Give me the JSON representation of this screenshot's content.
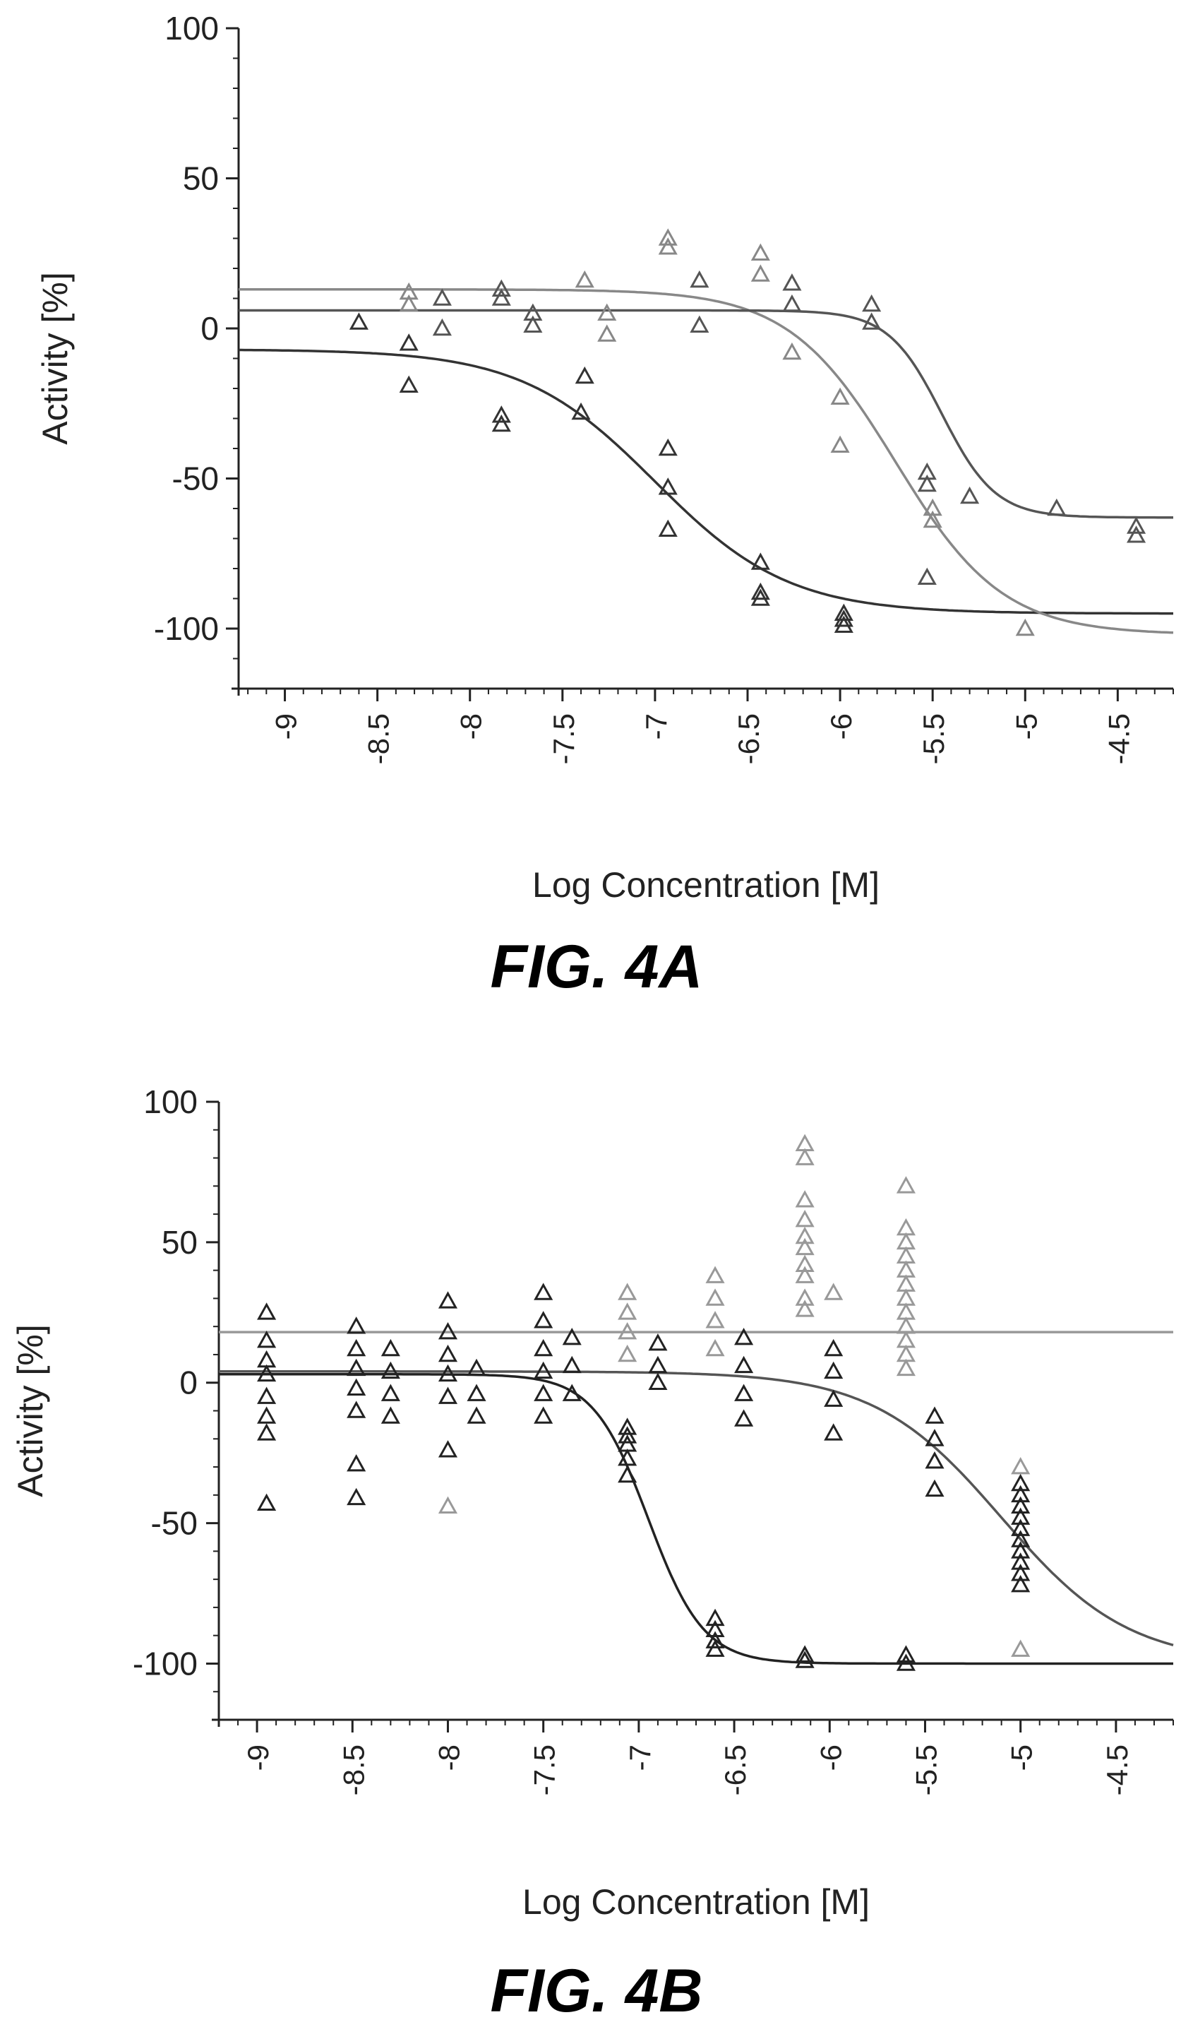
{
  "figures": [
    {
      "label": "FIG. 4A"
    },
    {
      "label": "FIG. 4B"
    }
  ],
  "chart_data": [
    {
      "type": "scatter",
      "title": "",
      "xlabel": "Log Concentration [M]",
      "ylabel": "Activity [%]",
      "xlim": [
        -9.25,
        -4.2
      ],
      "ylim": [
        -120,
        100
      ],
      "xticks": [
        -9,
        -8.5,
        -8,
        -7.5,
        -7,
        -6.5,
        -6,
        -5.5,
        -5,
        -4.5
      ],
      "xtick_labels": [
        "-9",
        "-8.5",
        "-8",
        "-7.5",
        "-7",
        "-6.5",
        "-6",
        "-5.5",
        "-5",
        "-4.5"
      ],
      "yticks": [
        100,
        50,
        0,
        -50,
        -100
      ],
      "ytick_labels": [
        "100",
        "50",
        "0",
        "-50",
        "-100"
      ],
      "marker": "triangle",
      "grid": false,
      "series": [
        {
          "color": "#333333",
          "curve": {
            "model": "4PL",
            "top": -7,
            "bottom": -95,
            "logEC50": -7.0,
            "hill": 1.2
          },
          "points": [
            {
              "x": -8.6,
              "y": 2
            },
            {
              "x": -8.33,
              "y": -5
            },
            {
              "x": -8.33,
              "y": -19
            },
            {
              "x": -7.83,
              "y": -29
            },
            {
              "x": -7.83,
              "y": -32
            },
            {
              "x": -7.4,
              "y": -28
            },
            {
              "x": -7.38,
              "y": -16
            },
            {
              "x": -6.93,
              "y": -40
            },
            {
              "x": -6.93,
              "y": -53
            },
            {
              "x": -6.93,
              "y": -67
            },
            {
              "x": -6.43,
              "y": -78
            },
            {
              "x": -6.43,
              "y": -88
            },
            {
              "x": -6.43,
              "y": -90
            },
            {
              "x": -5.98,
              "y": -95
            },
            {
              "x": -5.98,
              "y": -97
            },
            {
              "x": -5.98,
              "y": -99
            }
          ]
        },
        {
          "color": "#888888",
          "curve": {
            "model": "4PL",
            "top": 13,
            "bottom": -102,
            "logEC50": -5.7,
            "hill": 1.5
          },
          "points": [
            {
              "x": -8.33,
              "y": 12
            },
            {
              "x": -8.33,
              "y": 8
            },
            {
              "x": -7.38,
              "y": 16
            },
            {
              "x": -7.26,
              "y": 5
            },
            {
              "x": -7.26,
              "y": -2
            },
            {
              "x": -6.93,
              "y": 30
            },
            {
              "x": -6.93,
              "y": 27
            },
            {
              "x": -6.43,
              "y": 25
            },
            {
              "x": -6.43,
              "y": 18
            },
            {
              "x": -6.26,
              "y": -8
            },
            {
              "x": -6.0,
              "y": -23
            },
            {
              "x": -6.0,
              "y": -39
            },
            {
              "x": -5.5,
              "y": -60
            },
            {
              "x": -5.5,
              "y": -64
            },
            {
              "x": -5.0,
              "y": -100
            }
          ]
        },
        {
          "color": "#555555",
          "curve": {
            "model": "4PL",
            "top": 6,
            "bottom": -63,
            "logEC50": -5.45,
            "hill": 3.0
          },
          "points": [
            {
              "x": -8.15,
              "y": 0
            },
            {
              "x": -8.15,
              "y": 10
            },
            {
              "x": -7.83,
              "y": 13
            },
            {
              "x": -7.83,
              "y": 10
            },
            {
              "x": -7.66,
              "y": 5
            },
            {
              "x": -7.66,
              "y": 1
            },
            {
              "x": -6.76,
              "y": 16
            },
            {
              "x": -6.76,
              "y": 1
            },
            {
              "x": -6.26,
              "y": 15
            },
            {
              "x": -6.26,
              "y": 8
            },
            {
              "x": -5.83,
              "y": 8
            },
            {
              "x": -5.83,
              "y": 2
            },
            {
              "x": -5.53,
              "y": -48
            },
            {
              "x": -5.53,
              "y": -52
            },
            {
              "x": -5.53,
              "y": -83
            },
            {
              "x": -5.3,
              "y": -56
            },
            {
              "x": -4.83,
              "y": -60
            },
            {
              "x": -4.4,
              "y": -66
            },
            {
              "x": -4.4,
              "y": -69
            }
          ]
        }
      ]
    },
    {
      "type": "scatter",
      "title": "",
      "xlabel": "Log Concentration [M]",
      "ylabel": "Activity [%]",
      "xlim": [
        -9.2,
        -4.2
      ],
      "ylim": [
        -120,
        100
      ],
      "xticks": [
        -9,
        -8.5,
        -8,
        -7.5,
        -7,
        -6.5,
        -6,
        -5.5,
        -5,
        -4.5
      ],
      "xtick_labels": [
        "-9",
        "-8.5",
        "-8",
        "-7.5",
        "-7",
        "-6.5",
        "-6",
        "-5.5",
        "-5",
        "-4.5"
      ],
      "yticks": [
        100,
        50,
        0,
        -50,
        -100
      ],
      "ytick_labels": [
        "100",
        "50",
        "0",
        "-50",
        "-100"
      ],
      "marker": "triangle",
      "grid": false,
      "series": [
        {
          "color": "#999999",
          "curve": {
            "model": "constant",
            "value": 18
          },
          "points": [
            {
              "x": -6.13,
              "y": 85
            },
            {
              "x": -6.13,
              "y": 80
            },
            {
              "x": -6.13,
              "y": 65
            },
            {
              "x": -6.13,
              "y": 58
            },
            {
              "x": -6.13,
              "y": 52
            },
            {
              "x": -6.13,
              "y": 48
            },
            {
              "x": -6.13,
              "y": 42
            },
            {
              "x": -6.13,
              "y": 38
            },
            {
              "x": -6.13,
              "y": 30
            },
            {
              "x": -6.13,
              "y": 26
            },
            {
              "x": -5.6,
              "y": 70
            },
            {
              "x": -5.6,
              "y": 55
            },
            {
              "x": -5.6,
              "y": 50
            },
            {
              "x": -5.6,
              "y": 45
            },
            {
              "x": -5.6,
              "y": 40
            },
            {
              "x": -5.6,
              "y": 35
            },
            {
              "x": -5.6,
              "y": 30
            },
            {
              "x": -5.6,
              "y": 25
            },
            {
              "x": -5.6,
              "y": 20
            },
            {
              "x": -5.6,
              "y": 15
            },
            {
              "x": -5.6,
              "y": 10
            },
            {
              "x": -5.6,
              "y": 5
            },
            {
              "x": -6.6,
              "y": 38
            },
            {
              "x": -6.6,
              "y": 30
            },
            {
              "x": -6.6,
              "y": 22
            },
            {
              "x": -6.6,
              "y": 12
            },
            {
              "x": -7.06,
              "y": 32
            },
            {
              "x": -7.06,
              "y": 25
            },
            {
              "x": -7.06,
              "y": 18
            },
            {
              "x": -7.06,
              "y": 10
            },
            {
              "x": -5.98,
              "y": 32
            },
            {
              "x": -8.0,
              "y": -44
            },
            {
              "x": -5.0,
              "y": -95
            },
            {
              "x": -5.0,
              "y": -30
            }
          ]
        },
        {
          "color": "#222222",
          "curve": {
            "model": "4PL",
            "top": 3,
            "bottom": -100,
            "logEC50": -6.95,
            "hill": 3.0
          },
          "points": [
            {
              "x": -8.95,
              "y": 25
            },
            {
              "x": -8.95,
              "y": 15
            },
            {
              "x": -8.95,
              "y": 8
            },
            {
              "x": -8.95,
              "y": 3
            },
            {
              "x": -8.95,
              "y": -5
            },
            {
              "x": -8.95,
              "y": -12
            },
            {
              "x": -8.95,
              "y": -18
            },
            {
              "x": -8.95,
              "y": -43
            },
            {
              "x": -8.48,
              "y": 20
            },
            {
              "x": -8.48,
              "y": 12
            },
            {
              "x": -8.48,
              "y": 5
            },
            {
              "x": -8.48,
              "y": -2
            },
            {
              "x": -8.48,
              "y": -10
            },
            {
              "x": -8.48,
              "y": -29
            },
            {
              "x": -8.48,
              "y": -41
            },
            {
              "x": -8.3,
              "y": 12
            },
            {
              "x": -8.3,
              "y": 4
            },
            {
              "x": -8.3,
              "y": -4
            },
            {
              "x": -8.3,
              "y": -12
            },
            {
              "x": -8.0,
              "y": 29
            },
            {
              "x": -8.0,
              "y": 18
            },
            {
              "x": -8.0,
              "y": 10
            },
            {
              "x": -8.0,
              "y": 3
            },
            {
              "x": -8.0,
              "y": -5
            },
            {
              "x": -8.0,
              "y": -24
            },
            {
              "x": -7.85,
              "y": 5
            },
            {
              "x": -7.85,
              "y": -4
            },
            {
              "x": -7.85,
              "y": -12
            },
            {
              "x": -7.5,
              "y": 32
            },
            {
              "x": -7.5,
              "y": 22
            },
            {
              "x": -7.5,
              "y": 12
            },
            {
              "x": -7.5,
              "y": 4
            },
            {
              "x": -7.5,
              "y": -4
            },
            {
              "x": -7.5,
              "y": -12
            },
            {
              "x": -7.35,
              "y": 16
            },
            {
              "x": -7.35,
              "y": 6
            },
            {
              "x": -7.35,
              "y": -4
            },
            {
              "x": -7.06,
              "y": -16
            },
            {
              "x": -7.06,
              "y": -19
            },
            {
              "x": -7.06,
              "y": -22
            },
            {
              "x": -7.06,
              "y": -27
            },
            {
              "x": -7.06,
              "y": -33
            },
            {
              "x": -6.9,
              "y": 14
            },
            {
              "x": -6.9,
              "y": 6
            },
            {
              "x": -6.9,
              "y": 0
            },
            {
              "x": -6.6,
              "y": -84
            },
            {
              "x": -6.6,
              "y": -88
            },
            {
              "x": -6.6,
              "y": -92
            },
            {
              "x": -6.6,
              "y": -95
            },
            {
              "x": -6.45,
              "y": 16
            },
            {
              "x": -6.45,
              "y": 6
            },
            {
              "x": -6.45,
              "y": -4
            },
            {
              "x": -6.45,
              "y": -13
            },
            {
              "x": -6.13,
              "y": -97
            },
            {
              "x": -6.13,
              "y": -99
            },
            {
              "x": -5.98,
              "y": 12
            },
            {
              "x": -5.98,
              "y": 4
            },
            {
              "x": -5.98,
              "y": -6
            },
            {
              "x": -5.98,
              "y": -18
            },
            {
              "x": -5.6,
              "y": -97
            },
            {
              "x": -5.6,
              "y": -100
            },
            {
              "x": -5.45,
              "y": -12
            },
            {
              "x": -5.45,
              "y": -20
            },
            {
              "x": -5.45,
              "y": -28
            },
            {
              "x": -5.45,
              "y": -38
            },
            {
              "x": -5.0,
              "y": -36
            },
            {
              "x": -5.0,
              "y": -40
            },
            {
              "x": -5.0,
              "y": -44
            },
            {
              "x": -5.0,
              "y": -48
            },
            {
              "x": -5.0,
              "y": -52
            },
            {
              "x": -5.0,
              "y": -56
            },
            {
              "x": -5.0,
              "y": -60
            },
            {
              "x": -5.0,
              "y": -64
            },
            {
              "x": -5.0,
              "y": -68
            },
            {
              "x": -5.0,
              "y": -72
            }
          ]
        },
        {
          "color": "#555555",
          "curve": {
            "model": "4PL",
            "top": 4,
            "bottom": -100,
            "logEC50": -5.1,
            "hill": 1.3
          },
          "points": []
        }
      ]
    }
  ]
}
